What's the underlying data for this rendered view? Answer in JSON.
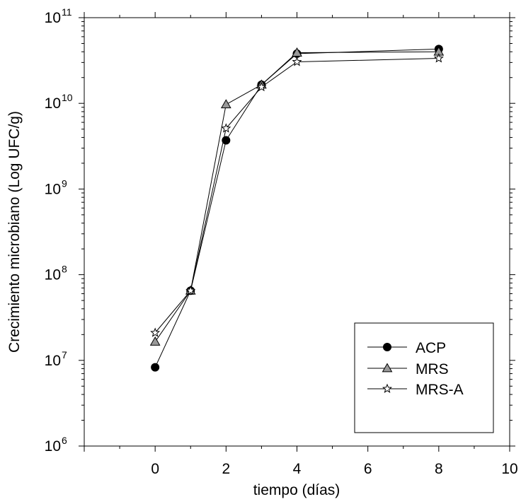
{
  "chart_data": {
    "type": "line",
    "title": "",
    "xlabel": "tiempo (días)",
    "ylabel": "Crecimiento microbiano (Log UFC/g)",
    "x_scale": "linear",
    "y_scale": "log",
    "xlim": [
      -2,
      10
    ],
    "ylim": [
      1000000,
      100000000000
    ],
    "x_ticks": [
      0,
      2,
      4,
      6,
      8,
      10
    ],
    "x_tick_labels": [
      "0",
      "2",
      "4",
      "6",
      "8",
      "10"
    ],
    "y_ticks": [
      1000000,
      10000000,
      100000000,
      1000000000,
      10000000000,
      100000000000
    ],
    "y_tick_labels": [
      {
        "base": "10",
        "exp": "6"
      },
      {
        "base": "10",
        "exp": "7"
      },
      {
        "base": "10",
        "exp": "8"
      },
      {
        "base": "10",
        "exp": "9"
      },
      {
        "base": "10",
        "exp": "10"
      },
      {
        "base": "10",
        "exp": "11"
      }
    ],
    "grid": false,
    "legend_position": "bottom-right",
    "series": [
      {
        "name": "ACP",
        "marker": "circle",
        "color": "#000000",
        "points": [
          [
            0,
            8300000
          ],
          [
            1,
            65000000
          ],
          [
            2,
            3700000000
          ],
          [
            3,
            16500000000
          ],
          [
            4,
            38000000000
          ],
          [
            8,
            43000000000
          ]
        ]
      },
      {
        "name": "MRS",
        "marker": "triangle",
        "color": "#999999",
        "points": [
          [
            0,
            16500000
          ],
          [
            1,
            65000000
          ],
          [
            2,
            9700000000
          ],
          [
            3,
            16500000000
          ],
          [
            4,
            39000000000
          ],
          [
            8,
            40000000000
          ]
        ]
      },
      {
        "name": "MRS-A",
        "marker": "star",
        "color": "#ffffff",
        "points": [
          [
            0,
            21000000
          ],
          [
            1,
            65000000
          ],
          [
            2,
            5100000000
          ],
          [
            3,
            15500000000
          ],
          [
            4,
            30500000000
          ],
          [
            8,
            33500000000
          ]
        ]
      }
    ]
  }
}
